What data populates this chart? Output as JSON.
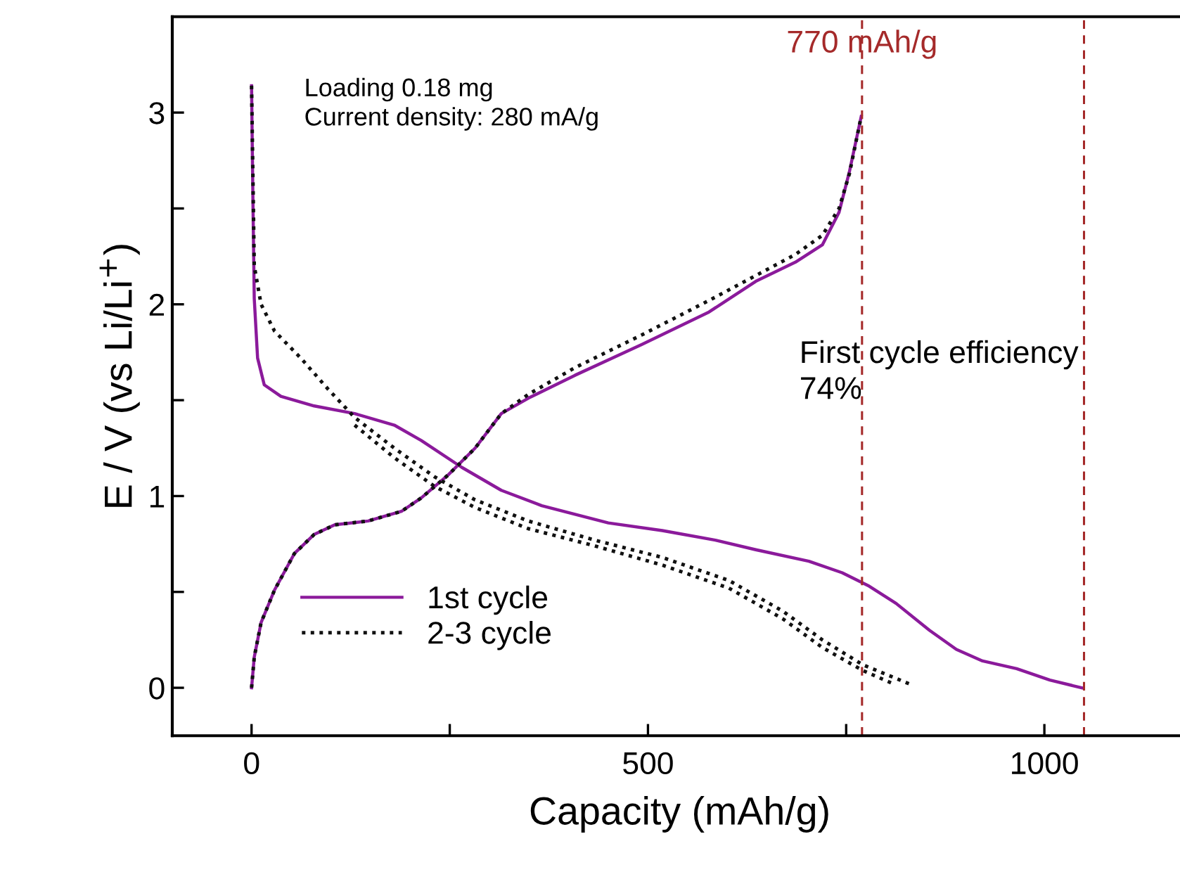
{
  "chart_data": {
    "type": "line",
    "xlabel": "Capacity (mAh/g)",
    "ylabel": "E / V (vs Li/Li$^{+}$)",
    "xlim": [
      -100,
      1180
    ],
    "ylim": [
      -0.25,
      3.5
    ],
    "xticks": [
      0,
      {
        "value": 250,
        "label": null
      },
      500,
      {
        "value": 750,
        "label": null
      },
      1000
    ],
    "yticks": [
      0,
      {
        "value": 0.5,
        "label": null
      },
      1,
      {
        "value": 1.5,
        "label": null
      },
      2,
      {
        "value": 2.5,
        "label": null
      },
      3
    ],
    "grid": false,
    "legend": "bottom left",
    "marker": "none",
    "series": [
      {
        "name": "1st cycle",
        "color": "#8b1a9b",
        "line_style": "solid",
        "x": [
          0,
          1.7,
          3.4,
          7.6,
          16,
          37,
          79,
          130,
          180,
          214,
          265,
          315,
          366,
          450,
          518,
          585,
          636,
          703,
          745,
          779,
          813,
          855,
          889,
          922,
          965,
          1007,
          1047
        ],
        "values": [
          3.14,
          2.55,
          2.03,
          1.72,
          1.58,
          1.52,
          1.47,
          1.43,
          1.37,
          1.29,
          1.15,
          1.03,
          0.95,
          0.86,
          0.82,
          0.77,
          0.72,
          0.66,
          0.6,
          0.53,
          0.44,
          0.3,
          0.2,
          0.14,
          0.1,
          0.04,
          0
        ]
      },
      {
        "color": "#8b1a9b",
        "line_style": "solid",
        "x": [
          0,
          3.4,
          12,
          29,
          54,
          79,
          105,
          147,
          189,
          214,
          248,
          282,
          315,
          349,
          408,
          492,
          577,
          636,
          686,
          720,
          741,
          754,
          769
        ],
        "values": [
          0,
          0.16,
          0.34,
          0.51,
          0.7,
          0.8,
          0.85,
          0.87,
          0.92,
          0.99,
          1.11,
          1.25,
          1.43,
          1.51,
          1.63,
          1.79,
          1.96,
          2.12,
          2.22,
          2.31,
          2.48,
          2.69,
          2.98
        ]
      },
      {
        "name": "2-3 cycle",
        "color": "#111111",
        "line_style": "dotted",
        "x": [
          0,
          3.4,
          12,
          29,
          62,
          96,
          130,
          180,
          231,
          282,
          349,
          433,
          518,
          602,
          670,
          720,
          771,
          830
        ],
        "values": [
          3.14,
          2.2,
          2.0,
          1.86,
          1.72,
          1.56,
          1.41,
          1.25,
          1.1,
          0.98,
          0.87,
          0.77,
          0.68,
          0.56,
          0.4,
          0.25,
          0.12,
          0.02
        ]
      },
      {
        "color": "#111111",
        "line_style": "dotted",
        "x": [
          130,
          180,
          231,
          282,
          349,
          433,
          518,
          602,
          670,
          720,
          771,
          810
        ],
        "values": [
          1.37,
          1.2,
          1.05,
          0.94,
          0.83,
          0.74,
          0.64,
          0.52,
          0.36,
          0.21,
          0.09,
          0.02
        ]
      },
      {
        "color": "#111111",
        "line_style": "dotted",
        "x": [
          0,
          3.4,
          12,
          29,
          54,
          79,
          105,
          147,
          189,
          214,
          248,
          282,
          315,
          349,
          408,
          492,
          577,
          636,
          686,
          720,
          741,
          754,
          769
        ],
        "values": [
          0,
          0.16,
          0.34,
          0.51,
          0.7,
          0.8,
          0.85,
          0.87,
          0.92,
          0.99,
          1.11,
          1.25,
          1.43,
          1.53,
          1.67,
          1.84,
          2.02,
          2.15,
          2.26,
          2.36,
          2.5,
          2.68,
          2.98
        ]
      }
    ],
    "ref_lines": [
      {
        "axis": "x",
        "value": 770,
        "label": "770 mAh/g",
        "color": "#a52a2a",
        "line_style": "dashed"
      },
      {
        "axis": "x",
        "value": 1050,
        "color": "#a52a2a",
        "line_style": "dashed"
      }
    ],
    "annotations": [
      "Loading 0.18 mg\nCurrent density: 280 mA/g",
      "First cycle efficiency\n74%"
    ]
  }
}
